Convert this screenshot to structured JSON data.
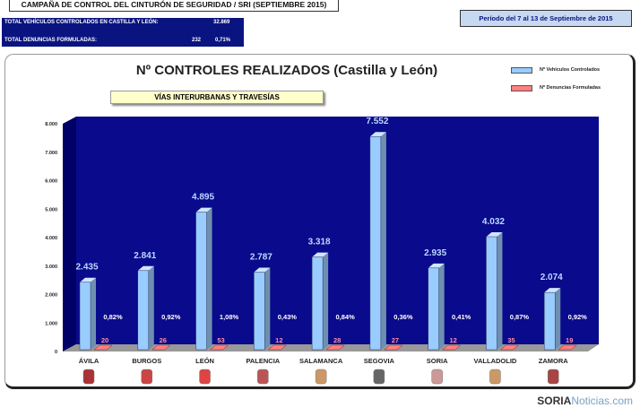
{
  "header": {
    "title": "CAMPAÑA DE CONTROL DEL CINTURÓN DE SEGURIDAD / SRI (SEPTIEMBRE 2015)",
    "total_vehicles_label": "TOTAL VEHÍCULOS CONTROLADOS EN CASTILLA Y LEÓN:",
    "total_vehicles": "32.869",
    "total_complaints_label": "TOTAL DENUNCIAS FORMULADAS:",
    "total_complaints": "232",
    "total_pct": "0,71%",
    "period": "Período del 7 al 13 de Septiembre de 2015"
  },
  "watermark": {
    "brand": "SORIA",
    "suffix": "Noticias.com"
  },
  "chart_data": {
    "type": "bar",
    "title": "Nº CONTROLES REALIZADOS (Castilla y León)",
    "subtitle": "VÍAS INTERURBANAS  Y TRAVESÍAS",
    "categories": [
      "ÁVILA",
      "BURGOS",
      "LEÓN",
      "PALENCIA",
      "SALAMANCA",
      "SEGOVIA",
      "SORIA",
      "VALLADOLID",
      "ZAMORA"
    ],
    "series": [
      {
        "name": "Nº Vehículos Controlados",
        "color": "#99ccff",
        "values": [
          2435,
          2841,
          4895,
          2787,
          3318,
          7552,
          2935,
          4032,
          2074
        ],
        "labels": [
          "2.435",
          "2.841",
          "4.895",
          "2.787",
          "3.318",
          "7.552",
          "2.935",
          "4.032",
          "2.074"
        ]
      },
      {
        "name": "Nº Denuncias Formuladas",
        "color": "#ff8080",
        "values": [
          20,
          26,
          53,
          12,
          28,
          27,
          12,
          35,
          19
        ],
        "labels": [
          "20",
          "26",
          "53",
          "12",
          "28",
          "27",
          "12",
          "35",
          "19"
        ]
      }
    ],
    "percentages": [
      "0,82%",
      "0,92%",
      "1,08%",
      "0,43%",
      "0,84%",
      "0,36%",
      "0,41%",
      "0,87%",
      "0,92%"
    ],
    "yticks": [
      "0",
      "1.000",
      "2.000",
      "3.000",
      "4.000",
      "5.000",
      "6.000",
      "7.000",
      "8.000"
    ],
    "ylim": [
      0,
      8000
    ],
    "legend": "top-right",
    "plot_background": "#0a0a8c"
  }
}
